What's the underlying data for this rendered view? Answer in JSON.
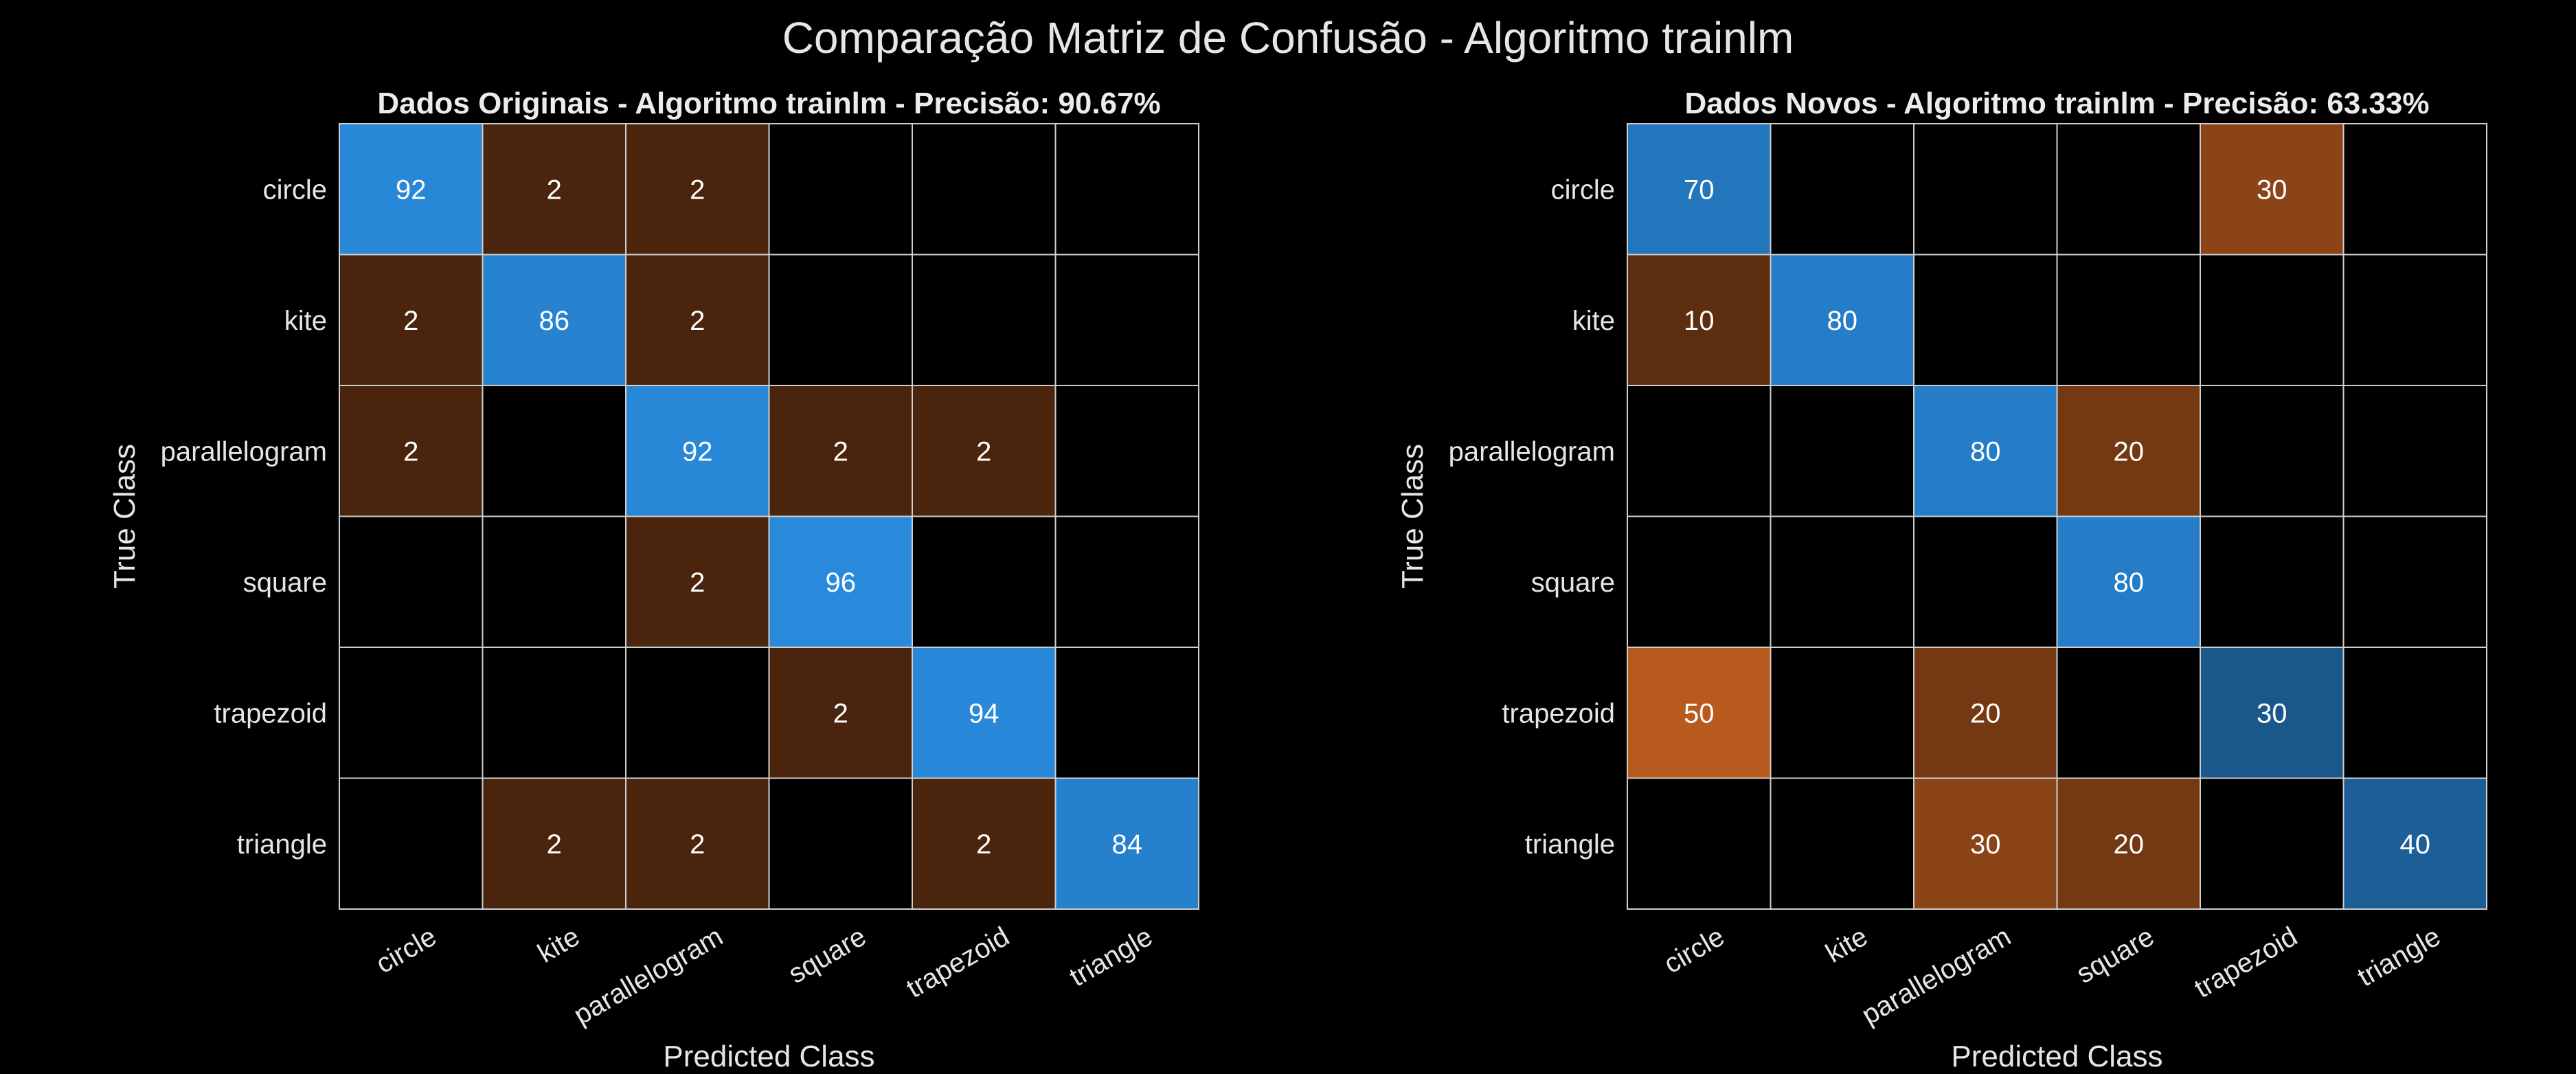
{
  "suptitle": "Comparação Matriz de Confusão - Algoritmo trainlm",
  "chart_data": [
    {
      "type": "heatmap",
      "title": "Dados Originais - Algoritmo trainlm - Precisão: 90.67%",
      "xlabel": "Predicted Class",
      "ylabel": "True Class",
      "classes": [
        "circle",
        "kite",
        "parallelogram",
        "square",
        "trapezoid",
        "triangle"
      ],
      "values": [
        [
          92,
          2,
          2,
          null,
          null,
          null
        ],
        [
          2,
          86,
          2,
          null,
          null,
          null
        ],
        [
          2,
          null,
          92,
          2,
          2,
          null
        ],
        [
          null,
          null,
          2,
          96,
          null,
          null
        ],
        [
          null,
          null,
          null,
          2,
          94,
          null
        ],
        [
          null,
          2,
          2,
          null,
          2,
          84
        ]
      ],
      "colors": {
        "diagonal": "#2a8de0",
        "off_diagonal": "#b85a1e",
        "empty": "#000000",
        "grid": "#cfcfcf"
      }
    },
    {
      "type": "heatmap",
      "title": "Dados Novos - Algoritmo trainlm - Precisão: 63.33%",
      "xlabel": "Predicted Class",
      "ylabel": "True Class",
      "classes": [
        "circle",
        "kite",
        "parallelogram",
        "square",
        "trapezoid",
        "triangle"
      ],
      "values": [
        [
          70,
          null,
          null,
          null,
          30,
          null
        ],
        [
          10,
          80,
          null,
          null,
          null,
          null
        ],
        [
          null,
          null,
          80,
          20,
          null,
          null
        ],
        [
          null,
          null,
          null,
          80,
          null,
          null
        ],
        [
          50,
          null,
          20,
          null,
          30,
          null
        ],
        [
          null,
          null,
          30,
          20,
          null,
          40
        ]
      ],
      "colors": {
        "diagonal": "#2a8de0",
        "off_diagonal": "#b85a1e",
        "empty": "#000000",
        "grid": "#cfcfcf"
      }
    }
  ]
}
